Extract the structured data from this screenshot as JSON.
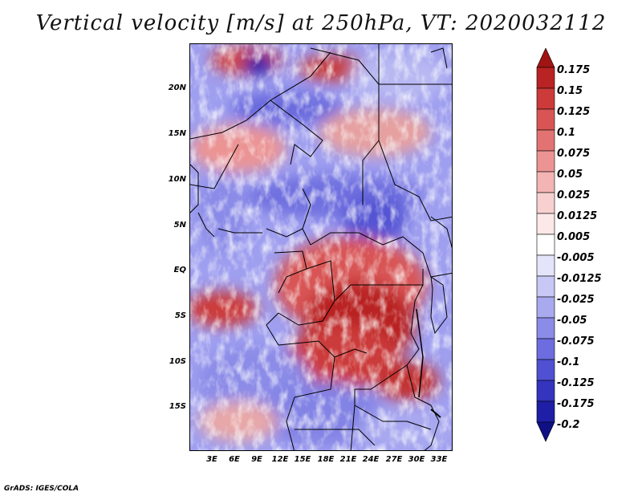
{
  "title": "Vertical velocity [m/s] at 250hPa, VT: 2020032112",
  "credit": "GrADS: IGES/COLA",
  "map": {
    "variable": "Vertical velocity",
    "units": "m/s",
    "level": "250hPa",
    "valid_time": "2020032112",
    "lat_labels": [
      "20N",
      "15N",
      "10N",
      "5N",
      "EQ",
      "5S",
      "10S",
      "15S"
    ],
    "lon_labels": [
      "3E",
      "6E",
      "9E",
      "12E",
      "15E",
      "18E",
      "21E",
      "24E",
      "27E",
      "30E",
      "33E"
    ]
  },
  "colorbar": {
    "labels": [
      "0.175",
      "0.15",
      "0.125",
      "0.1",
      "0.075",
      "0.05",
      "0.025",
      "0.0125",
      "0.005",
      "-0.005",
      "-0.0125",
      "-0.025",
      "-0.05",
      "-0.075",
      "-0.1",
      "-0.125",
      "-0.175",
      "-0.2"
    ],
    "colors": [
      "#a01414",
      "#b92323",
      "#cc3a3a",
      "#d95555",
      "#e37373",
      "#ec9494",
      "#f3b4b4",
      "#f8d0d0",
      "#fce8e8",
      "#ffffff",
      "#e4e4fb",
      "#c8c8f6",
      "#a9a9f0",
      "#8b8be8",
      "#6d6de0",
      "#5050d2",
      "#3434bf",
      "#1e1ea6",
      "#0f0f86"
    ]
  }
}
